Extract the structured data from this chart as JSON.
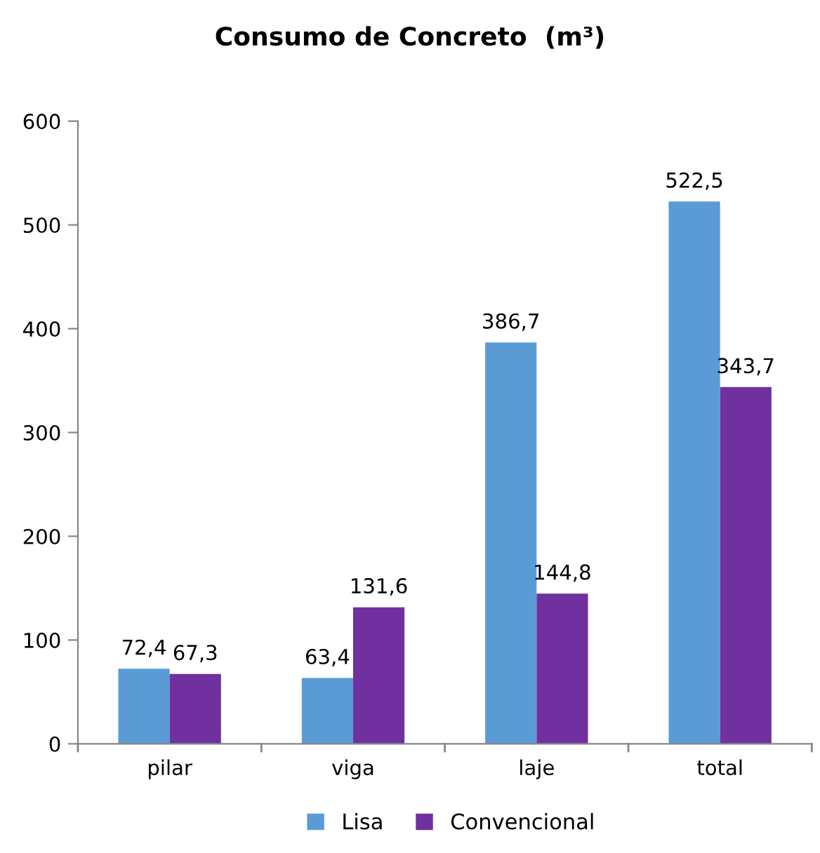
{
  "chart_data": {
    "type": "bar",
    "title": "Consumo de Concreto  (m³)",
    "categories": [
      "pilar",
      "viga",
      "laje",
      "total"
    ],
    "series": [
      {
        "name": "Lisa",
        "color": "#5b9bd5",
        "values": [
          72.4,
          63.4,
          386.7,
          522.5
        ],
        "value_labels": [
          "72,4",
          "63,4",
          "386,7",
          "522,5"
        ]
      },
      {
        "name": "Convencional",
        "color": "#7030a0",
        "values": [
          67.3,
          131.6,
          144.8,
          343.7
        ],
        "value_labels": [
          "67,3",
          "131,6",
          "144,8",
          "343,7"
        ]
      }
    ],
    "ylim": [
      0,
      600
    ],
    "yticks": [
      0,
      100,
      200,
      300,
      400,
      500,
      600
    ],
    "grid": false,
    "legend": "bottom"
  }
}
